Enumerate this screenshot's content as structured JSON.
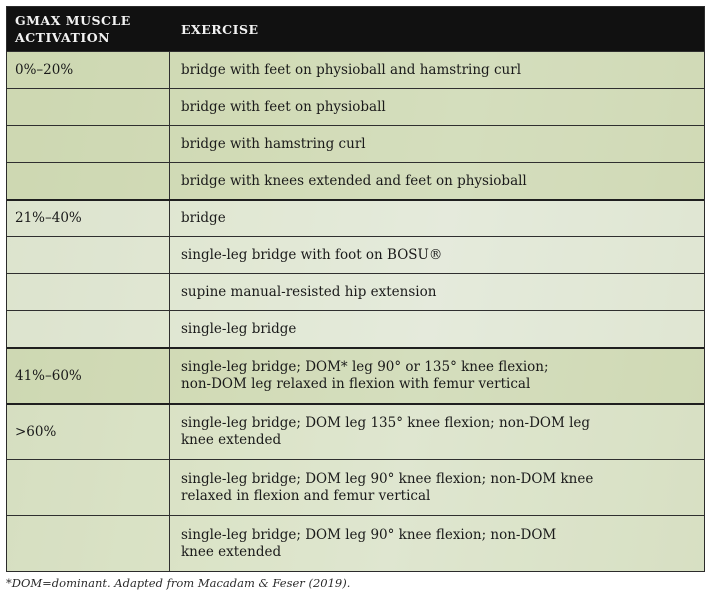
{
  "table": {
    "headers": {
      "activation_line1": "GMAX MUSCLE",
      "activation_line2": "ACTIVATION",
      "exercise": "EXERCISE"
    },
    "rows": [
      {
        "activation": "0%–20%",
        "exercise": "bridge with feet on physioball and hamstring curl"
      },
      {
        "activation": "",
        "exercise": "bridge with feet on physioball"
      },
      {
        "activation": "",
        "exercise": "bridge with hamstring curl"
      },
      {
        "activation": "",
        "exercise": "bridge with knees extended and feet on physioball"
      },
      {
        "activation": "21%–40%",
        "exercise": "bridge"
      },
      {
        "activation": "",
        "exercise": "single-leg bridge with foot on BOSU®"
      },
      {
        "activation": "",
        "exercise": "supine manual-resisted hip extension"
      },
      {
        "activation": "",
        "exercise": "single-leg bridge"
      },
      {
        "activation": "41%–60%",
        "exercise_line1": "single-leg bridge; DOM* leg 90° or 135° knee flexion;",
        "exercise_line2": "non-DOM leg relaxed in flexion with femur vertical"
      },
      {
        "activation": ">60%",
        "exercise_line1": "single-leg bridge; DOM leg 135° knee flexion; non-DOM leg",
        "exercise_line2": "knee extended"
      },
      {
        "activation": "",
        "exercise_line1": "single-leg bridge; DOM leg 90° knee flexion; non-DOM knee",
        "exercise_line2": "relaxed in flexion and femur vertical"
      },
      {
        "activation": "",
        "exercise_line1": "single-leg bridge; DOM leg 90° knee flexion; non-DOM",
        "exercise_line2": "knee extended"
      }
    ]
  },
  "footnote": "*DOM=dominant. Adapted from Macadam & Feser (2019)."
}
